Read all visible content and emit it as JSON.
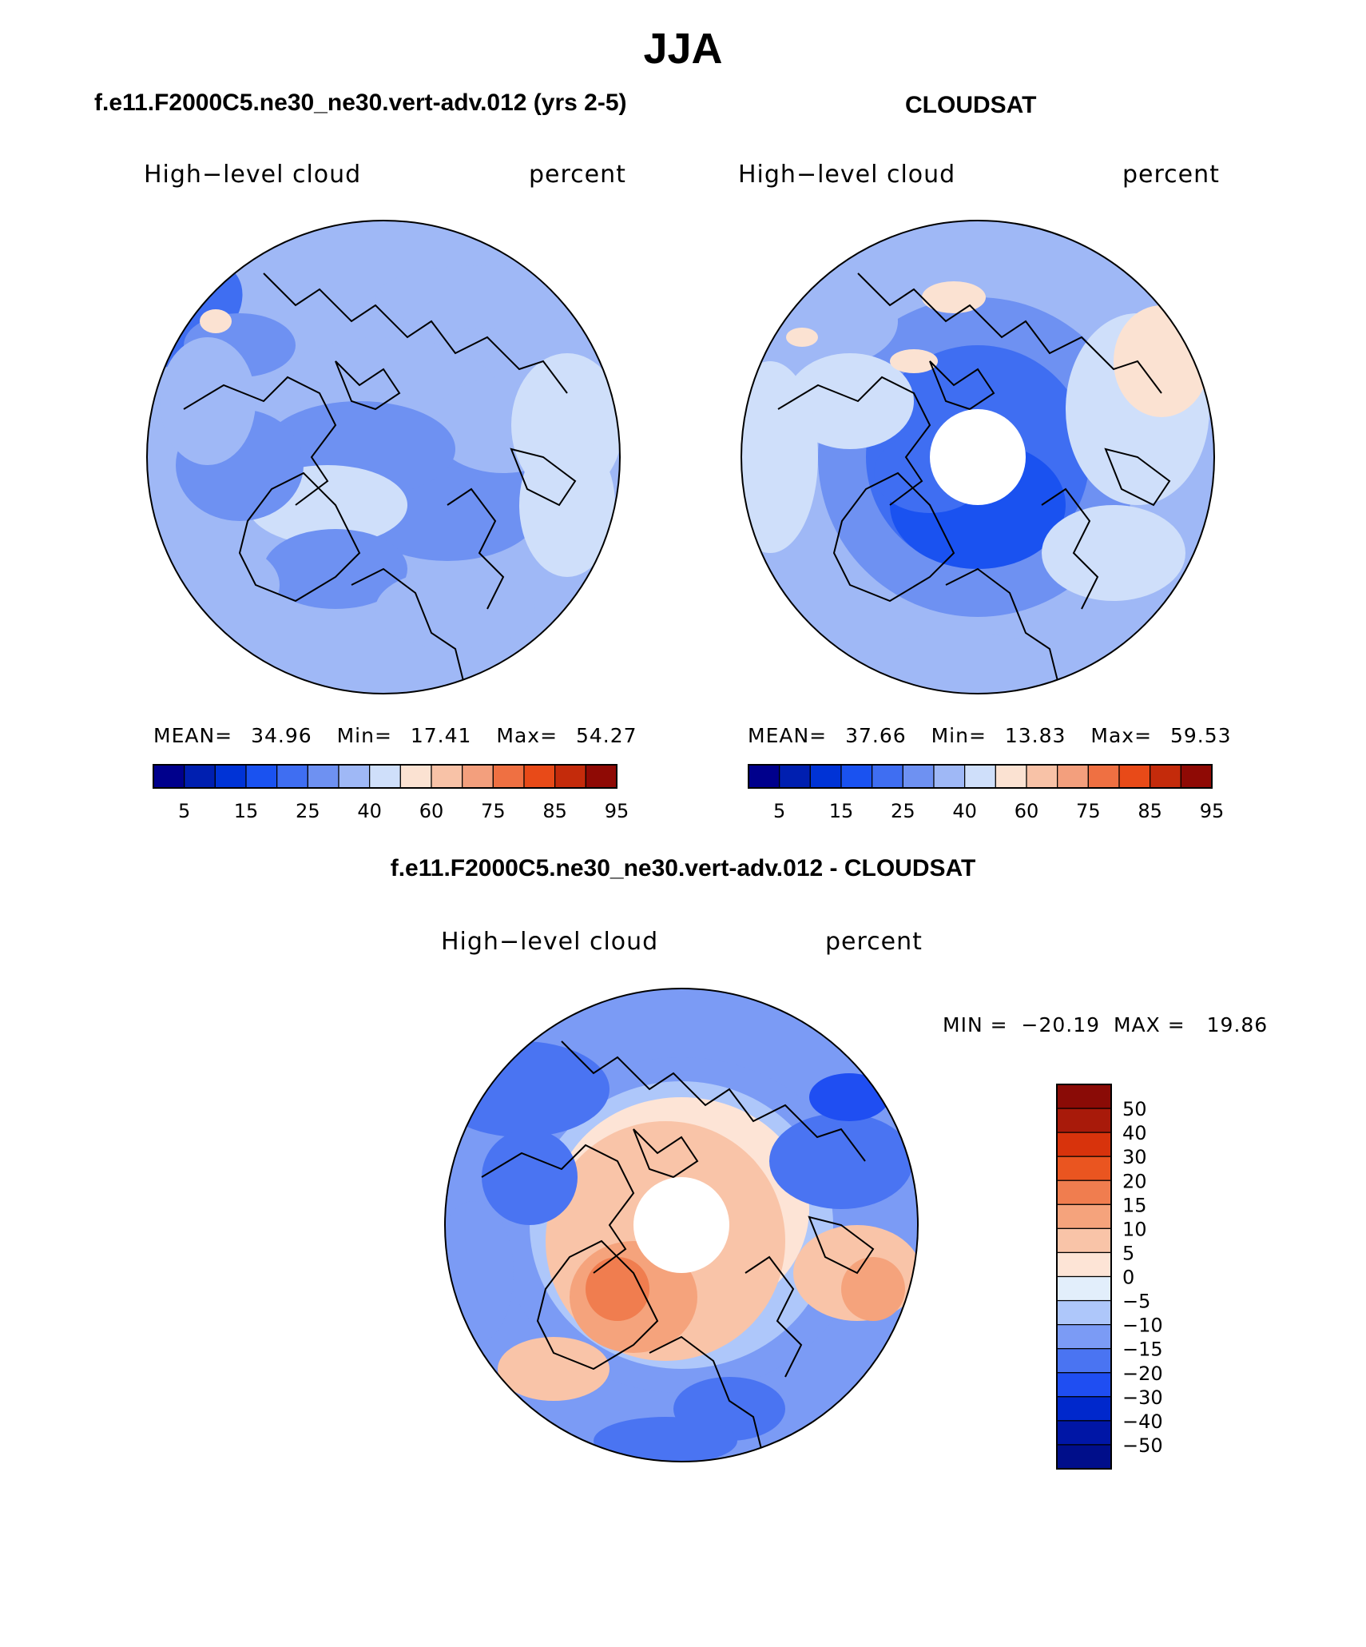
{
  "title": "JJA",
  "colors": {
    "seq_scale": [
      "#00008c",
      "#001fb0",
      "#0033d6",
      "#1a52f0",
      "#3f6ef2",
      "#6e91f2",
      "#9fb8f6",
      "#cfdffa",
      "#fbe2d2",
      "#f8c2a7",
      "#f39f7d",
      "#ef7042",
      "#e84a18",
      "#c42b0b",
      "#8f0a05"
    ],
    "diff_scale": [
      "#000e8a",
      "#0016a6",
      "#0028cc",
      "#1f4ef2",
      "#4a74f2",
      "#7b9bf5",
      "#aec7fa",
      "#e2eefb",
      "#fde4d6",
      "#f9c4a8",
      "#f5a37c",
      "#f07d4f",
      "#ea5520",
      "#d8330c",
      "#a81a0a",
      "#8a0b06"
    ],
    "land": "#e8e4c8"
  },
  "panels": [
    {
      "title": "f.e11.F2000C5.ne30_ne30.vert-adv.012 (yrs 2-5)",
      "variable": "High−level cloud",
      "units": "percent",
      "stats": {
        "mean_label": "MEAN=",
        "mean": "34.96",
        "min_label": "Min=",
        "min": "17.41",
        "max_label": "Max=",
        "max": "54.27"
      },
      "colorbar_ticks": [
        "5",
        "15",
        "25",
        "40",
        "60",
        "75",
        "85",
        "95"
      ]
    },
    {
      "title": "CLOUDSAT",
      "variable": "High−level cloud",
      "units": "percent",
      "stats": {
        "mean_label": "MEAN=",
        "mean": "37.66",
        "min_label": "Min=",
        "min": "13.83",
        "max_label": "Max=",
        "max": "59.53"
      },
      "colorbar_ticks": [
        "5",
        "15",
        "25",
        "40",
        "60",
        "75",
        "85",
        "95"
      ]
    },
    {
      "title": "f.e11.F2000C5.ne30_ne30.vert-adv.012 - CLOUDSAT",
      "variable": "High−level cloud",
      "units": "percent",
      "stats": {
        "min_label": "MIN =",
        "min": "−20.19",
        "max_label": "MAX =",
        "max": "19.86"
      },
      "colorbar_ticks": [
        "50",
        "40",
        "30",
        "20",
        "15",
        "10",
        "5",
        "0",
        "−5",
        "−10",
        "−15",
        "−20",
        "−30",
        "−40",
        "−50"
      ]
    }
  ],
  "chart_data": [
    {
      "type": "heatmap",
      "projection": "north polar stereographic",
      "title": "f.e11.F2000C5.ne30_ne30.vert-adv.012 (yrs 2-5)",
      "variable": "High-level cloud",
      "units": "percent",
      "mean": 34.96,
      "min": 17.41,
      "max": 54.27,
      "levels": [
        5,
        10,
        15,
        20,
        25,
        30,
        35,
        40,
        50,
        60,
        65,
        70,
        75,
        80,
        85,
        90,
        95
      ],
      "dominant_range": [
        25,
        40
      ]
    },
    {
      "type": "heatmap",
      "projection": "north polar stereographic",
      "title": "CLOUDSAT",
      "variable": "High-level cloud",
      "units": "percent",
      "mean": 37.66,
      "min": 13.83,
      "max": 59.53,
      "levels": [
        5,
        10,
        15,
        20,
        25,
        30,
        35,
        40,
        50,
        60,
        65,
        70,
        75,
        80,
        85,
        90,
        95
      ],
      "missing_region": "pole (no data)"
    },
    {
      "type": "heatmap",
      "projection": "north polar stereographic",
      "title": "f.e11.F2000C5.ne30_ne30.vert-adv.012 - CLOUDSAT",
      "variable": "High-level cloud",
      "units": "percent",
      "min": -20.19,
      "max": 19.86,
      "levels": [
        -50,
        -40,
        -30,
        -20,
        -15,
        -10,
        -5,
        0,
        5,
        10,
        15,
        20,
        30,
        40,
        50
      ],
      "missing_region": "pole (no data)"
    }
  ]
}
